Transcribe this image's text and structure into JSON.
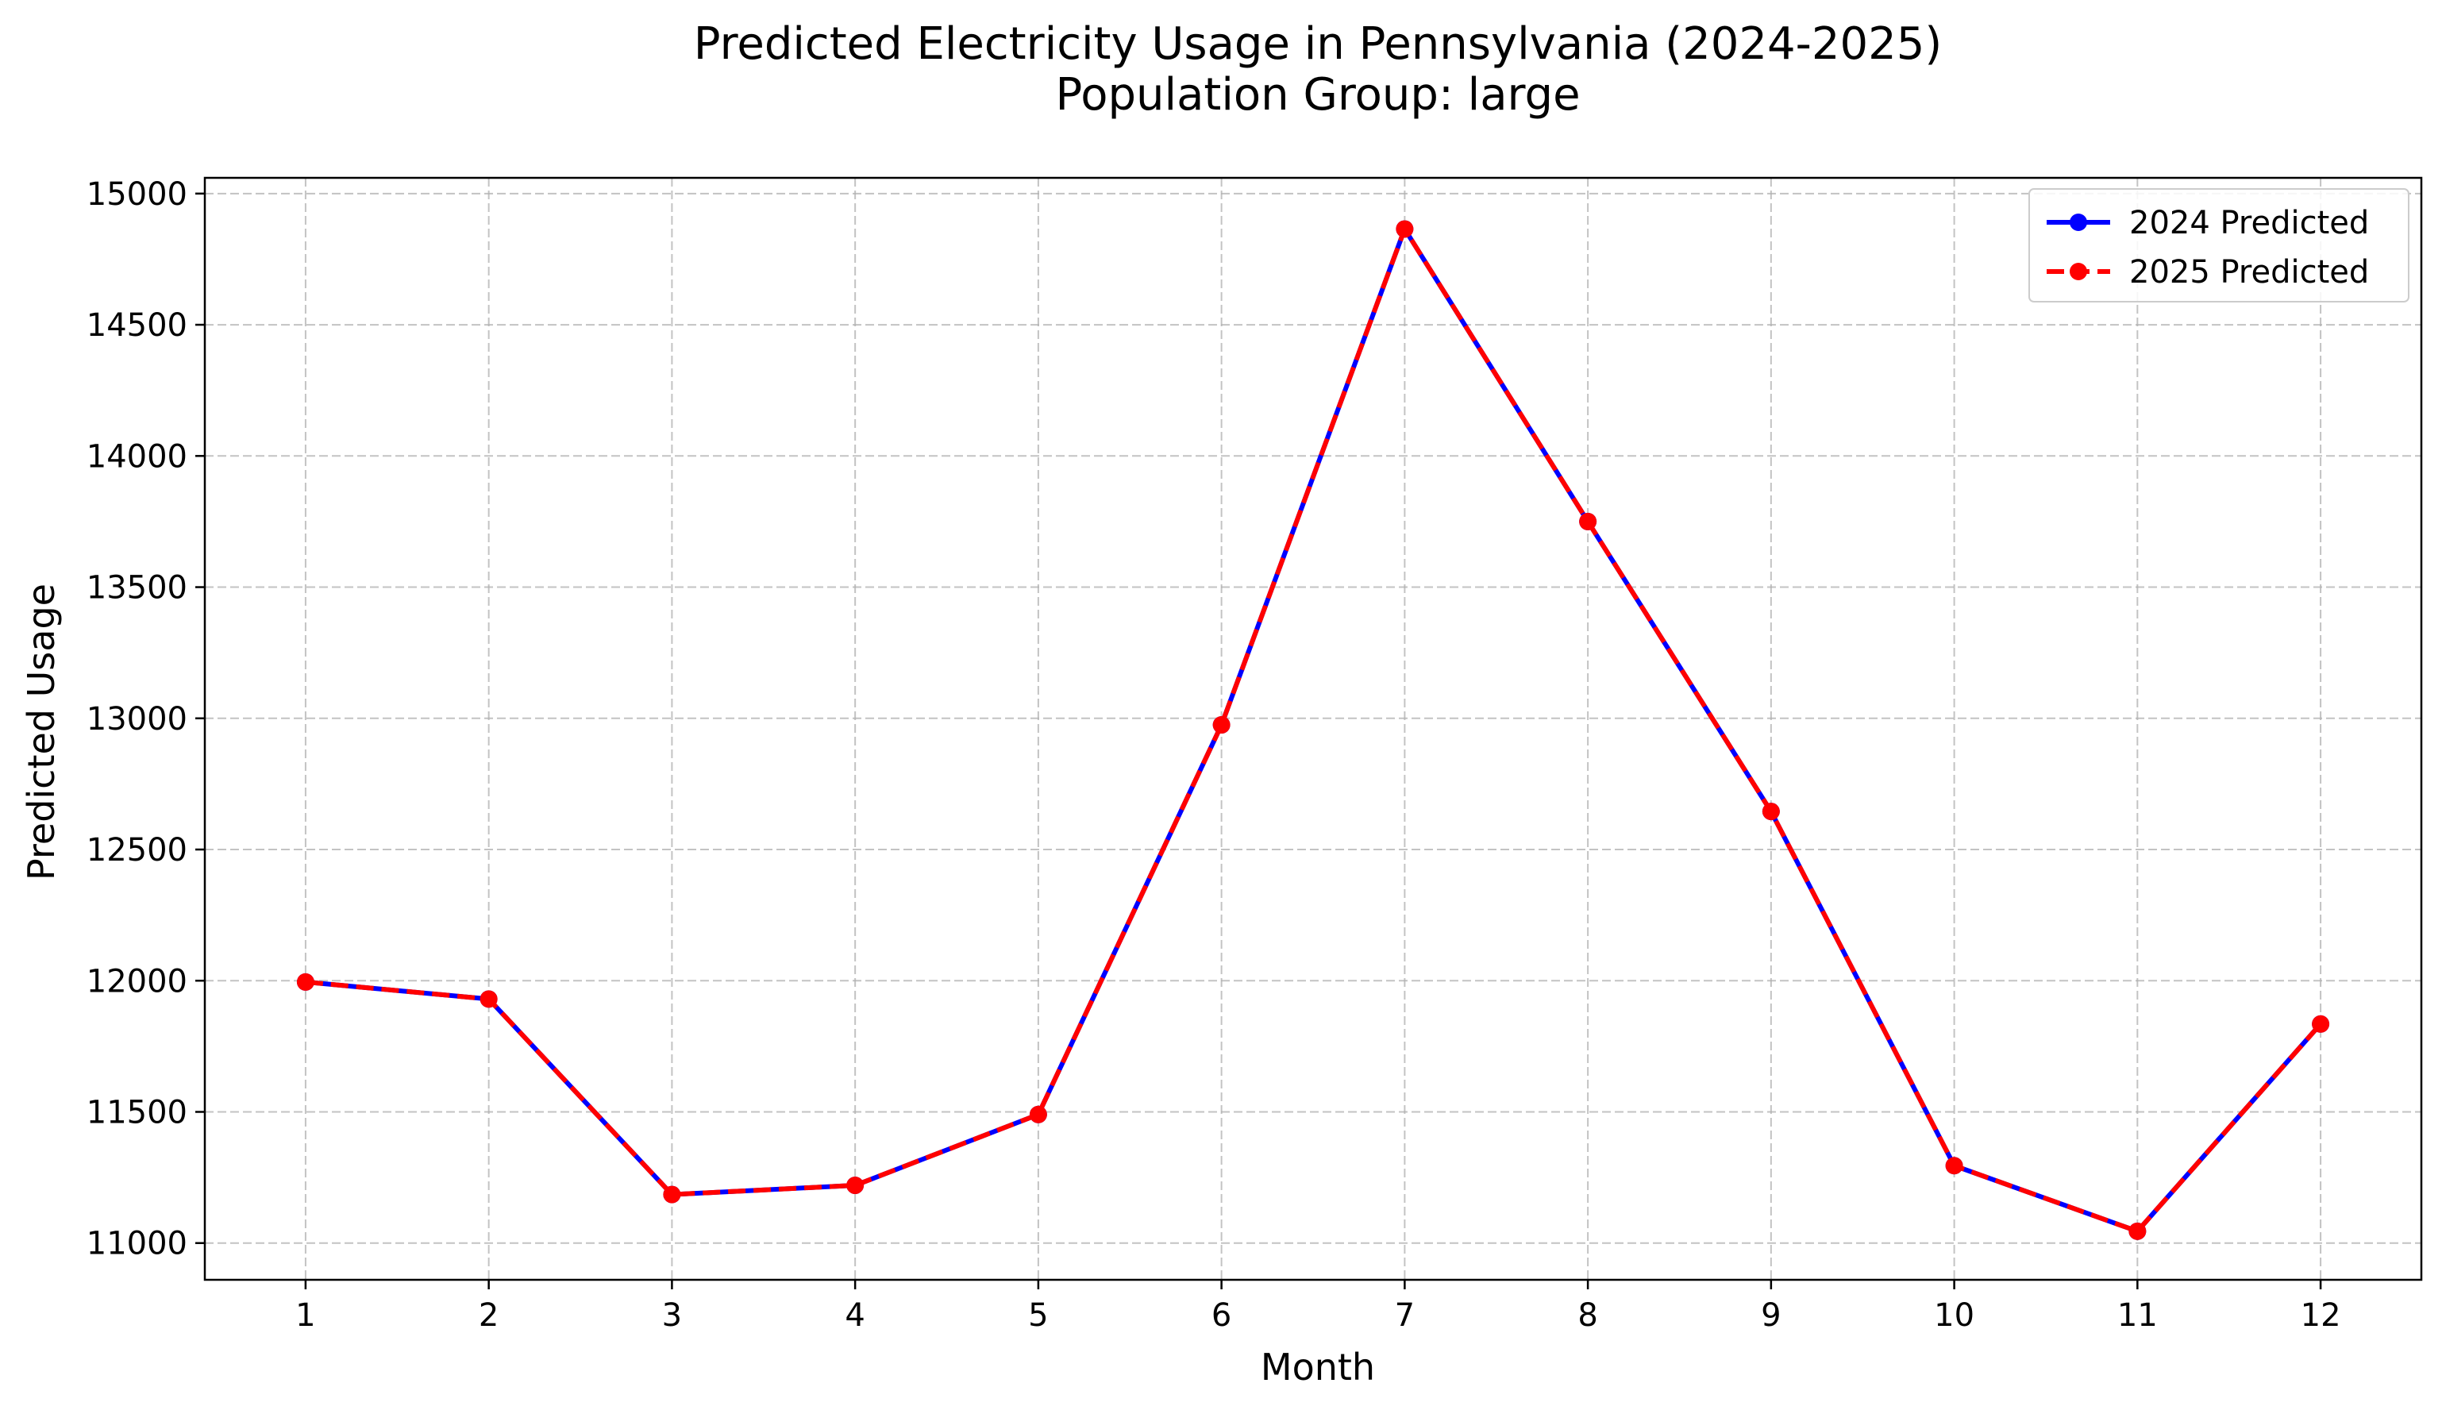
{
  "chart_data": {
    "type": "line",
    "title_lines": [
      "Predicted Electricity Usage in Pennsylvania (2024-2025)",
      "Population Group: large"
    ],
    "xlabel": "Month",
    "ylabel": "Predicted Usage",
    "x": [
      1,
      2,
      3,
      4,
      5,
      6,
      7,
      8,
      9,
      10,
      11,
      12
    ],
    "x_ticks": [
      "1",
      "2",
      "3",
      "4",
      "5",
      "6",
      "7",
      "8",
      "9",
      "10",
      "11",
      "12"
    ],
    "y_ticks": [
      "11000",
      "11500",
      "12000",
      "12500",
      "13000",
      "13500",
      "14000",
      "14500",
      "15000"
    ],
    "xlim": [
      0.45,
      12.55
    ],
    "ylim": [
      10860,
      15060
    ],
    "grid": true,
    "legend_position": "top-right",
    "series": [
      {
        "name": "2024 Predicted",
        "color": "#0000ff",
        "line_style": "solid",
        "values": [
          11995,
          11930,
          11185,
          11220,
          11490,
          12975,
          14865,
          13750,
          12645,
          11295,
          11045,
          11835
        ]
      },
      {
        "name": "2025 Predicted",
        "color": "#ff0000",
        "line_style": "dashed",
        "values": [
          11995,
          11930,
          11185,
          11220,
          11490,
          12975,
          14865,
          13750,
          12645,
          11295,
          11045,
          11835
        ]
      }
    ]
  }
}
